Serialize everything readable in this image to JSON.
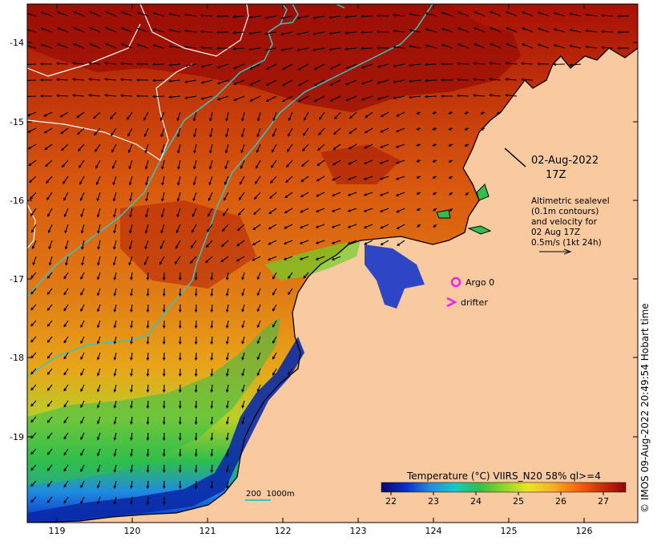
{
  "map": {
    "date": "02-Aug-2022",
    "time": "17Z",
    "info_lines": [
      "Altimetric sealevel",
      "(0.1m contours)",
      "and velocity for",
      "02 Aug 17Z",
      "0.5m/s (1kt 24h)"
    ],
    "legend": {
      "argo": "Argo 0",
      "drifter": "drifter"
    },
    "bathy_scale": "200  1000m",
    "colorbar": {
      "title": "Temperature (°C) VIIRS_N20 58% ql>=4",
      "ticks": [
        "22",
        "23",
        "24",
        "25",
        "26",
        "27"
      ],
      "colors": [
        "#08086b",
        "#0a2fc9",
        "#1f8ce0",
        "#17c8c8",
        "#2fbf4a",
        "#8ed42b",
        "#e8e81a",
        "#f7b21a",
        "#f06a14",
        "#d42a0c",
        "#8a0a06"
      ]
    },
    "x_ticks": [
      "119",
      "120",
      "121",
      "122",
      "123",
      "124",
      "125",
      "126"
    ],
    "y_ticks": [
      "-14",
      "-15",
      "-16",
      "-17",
      "-18",
      "-19"
    ],
    "credit": "© IMOS 09-Aug-2022 20:49:54 Hobart time",
    "colors": {
      "land": "#f9c9a0",
      "contour_bathy": "#33c6c6",
      "contour_sealevel": "#ffffff",
      "legend_marker": "#ee22ee"
    }
  }
}
